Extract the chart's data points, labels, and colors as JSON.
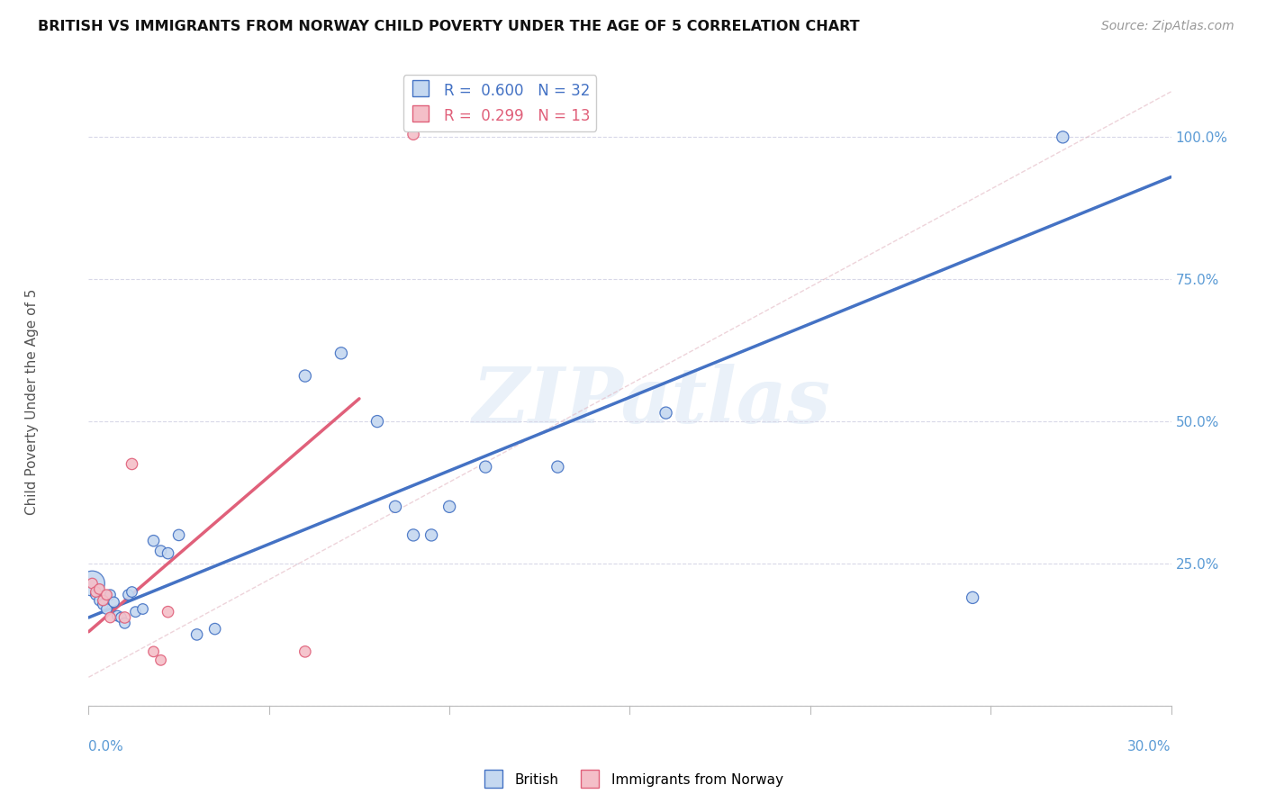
{
  "title": "BRITISH VS IMMIGRANTS FROM NORWAY CHILD POVERTY UNDER THE AGE OF 5 CORRELATION CHART",
  "source": "Source: ZipAtlas.com",
  "ylabel": "Child Poverty Under the Age of 5",
  "xlim": [
    0.0,
    0.3
  ],
  "ylim": [
    -0.03,
    1.1
  ],
  "british_R": 0.6,
  "british_N": 32,
  "norway_R": 0.299,
  "norway_N": 13,
  "british_color": "#c5d8f0",
  "british_edge_color": "#4472c4",
  "norway_color": "#f4bfc8",
  "norway_edge_color": "#e0607a",
  "watermark": "ZIPatlas",
  "british_x": [
    0.001,
    0.002,
    0.003,
    0.004,
    0.005,
    0.006,
    0.007,
    0.008,
    0.009,
    0.01,
    0.011,
    0.012,
    0.013,
    0.015,
    0.018,
    0.02,
    0.022,
    0.025,
    0.03,
    0.035,
    0.06,
    0.07,
    0.08,
    0.085,
    0.09,
    0.095,
    0.1,
    0.11,
    0.13,
    0.16,
    0.245,
    0.27
  ],
  "british_y": [
    0.215,
    0.195,
    0.185,
    0.178,
    0.17,
    0.195,
    0.182,
    0.158,
    0.155,
    0.145,
    0.195,
    0.2,
    0.165,
    0.17,
    0.29,
    0.272,
    0.268,
    0.3,
    0.125,
    0.135,
    0.58,
    0.62,
    0.5,
    0.35,
    0.3,
    0.3,
    0.35,
    0.42,
    0.42,
    0.515,
    0.19,
    1.0
  ],
  "british_sizes": [
    400,
    70,
    70,
    70,
    70,
    70,
    70,
    70,
    70,
    70,
    70,
    70,
    70,
    70,
    80,
    80,
    80,
    80,
    80,
    80,
    90,
    90,
    90,
    90,
    90,
    90,
    90,
    90,
    90,
    90,
    90,
    90
  ],
  "norway_x": [
    0.001,
    0.002,
    0.003,
    0.004,
    0.005,
    0.006,
    0.01,
    0.012,
    0.018,
    0.02,
    0.022,
    0.06,
    0.09
  ],
  "norway_y": [
    0.215,
    0.2,
    0.205,
    0.185,
    0.195,
    0.155,
    0.155,
    0.425,
    0.095,
    0.08,
    0.165,
    0.095,
    1.005
  ],
  "norway_sizes": [
    70,
    70,
    70,
    70,
    70,
    70,
    80,
    80,
    70,
    70,
    80,
    80,
    80
  ],
  "british_trend_x": [
    0.0,
    0.3
  ],
  "british_trend_y": [
    0.155,
    0.93
  ],
  "norway_trend_x": [
    0.0,
    0.075
  ],
  "norway_trend_y": [
    0.13,
    0.54
  ],
  "ref_line_x": [
    0.0,
    0.3
  ],
  "ref_line_y": [
    0.05,
    1.08
  ]
}
